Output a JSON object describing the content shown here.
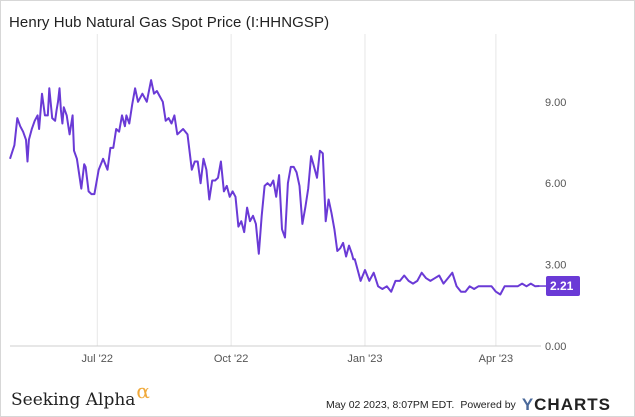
{
  "header": {
    "title": "Henry Hub Natural Gas Spot Price (I:HHNGSP)"
  },
  "footer": {
    "brand": "Seeking Alpha",
    "brand_symbol": "α",
    "timestamp": "May 02 2023, 8:07PM EDT.",
    "powered_by": "Powered by",
    "ycharts_y": "Y",
    "ycharts_rest": "CHARTS"
  },
  "colors": {
    "line": "#6a3ad6",
    "label_bg": "#6a3ad6",
    "grid": "#e6e6e6"
  },
  "chart_data": {
    "type": "line",
    "title": "Henry Hub Natural Gas Spot Price (I:HHNGSP)",
    "xlabel": "",
    "ylabel": "",
    "ylim": [
      0,
      11.5
    ],
    "xlim": [
      "2022-05-02",
      "2023-05-02"
    ],
    "y_ticks": [
      {
        "value": 0,
        "label": "0.00"
      },
      {
        "value": 3,
        "label": "3.00"
      },
      {
        "value": 6,
        "label": "6.00"
      },
      {
        "value": 9,
        "label": "9.00"
      }
    ],
    "x_ticks": [
      {
        "date": "2022-07-01",
        "label": "Jul '22"
      },
      {
        "date": "2022-10-01",
        "label": "Oct '22"
      },
      {
        "date": "2023-01-01",
        "label": "Jan '23"
      },
      {
        "date": "2023-04-01",
        "label": "Apr '23"
      }
    ],
    "grid": "vertical",
    "last_value": {
      "value": 2.21,
      "label": "2.21"
    },
    "series": [
      {
        "x": [
          "2022-05-02",
          "2022-05-05",
          "2022-05-07",
          "2022-05-09",
          "2022-05-11",
          "2022-05-13",
          "2022-05-14",
          "2022-05-15",
          "2022-05-17",
          "2022-05-19",
          "2022-05-21",
          "2022-05-22",
          "2022-05-24",
          "2022-05-26",
          "2022-05-28",
          "2022-05-29",
          "2022-05-31",
          "2022-06-02",
          "2022-06-03",
          "2022-06-04",
          "2022-06-05",
          "2022-06-06",
          "2022-06-07",
          "2022-06-08",
          "2022-06-10",
          "2022-06-12",
          "2022-06-14",
          "2022-06-15",
          "2022-06-17",
          "2022-06-20",
          "2022-06-22",
          "2022-06-23",
          "2022-06-25",
          "2022-06-27",
          "2022-06-29",
          "2022-07-02",
          "2022-07-05",
          "2022-07-08",
          "2022-07-10",
          "2022-07-12",
          "2022-07-14",
          "2022-07-16",
          "2022-07-18",
          "2022-07-20",
          "2022-07-21",
          "2022-07-23",
          "2022-07-25",
          "2022-07-27",
          "2022-07-29",
          "2022-08-01",
          "2022-08-04",
          "2022-08-07",
          "2022-08-09",
          "2022-08-11",
          "2022-08-13",
          "2022-08-15",
          "2022-08-17",
          "2022-08-19",
          "2022-08-21",
          "2022-08-23",
          "2022-08-25",
          "2022-08-27",
          "2022-08-29",
          "2022-09-01",
          "2022-09-04",
          "2022-09-06",
          "2022-09-08",
          "2022-09-10",
          "2022-09-12",
          "2022-09-14",
          "2022-09-16",
          "2022-09-18",
          "2022-09-20",
          "2022-09-22",
          "2022-09-24",
          "2022-09-26",
          "2022-09-28",
          "2022-09-30",
          "2022-10-02",
          "2022-10-04",
          "2022-10-06",
          "2022-10-08",
          "2022-10-10",
          "2022-10-12",
          "2022-10-14",
          "2022-10-16",
          "2022-10-18",
          "2022-10-20",
          "2022-10-22",
          "2022-10-24",
          "2022-10-26",
          "2022-10-28",
          "2022-10-30",
          "2022-11-01",
          "2022-11-03",
          "2022-11-05",
          "2022-11-07",
          "2022-11-09",
          "2022-11-11",
          "2022-11-13",
          "2022-11-15",
          "2022-11-17",
          "2022-11-19",
          "2022-11-21",
          "2022-11-23",
          "2022-11-25",
          "2022-11-27",
          "2022-11-29",
          "2022-12-01",
          "2022-12-03",
          "2022-12-05",
          "2022-12-07",
          "2022-12-09",
          "2022-12-11",
          "2022-12-13",
          "2022-12-15",
          "2022-12-17",
          "2022-12-19",
          "2022-12-21",
          "2022-12-23",
          "2022-12-24",
          "2022-12-25",
          "2022-12-27",
          "2022-12-29",
          "2023-01-01",
          "2023-01-04",
          "2023-01-07",
          "2023-01-10",
          "2023-01-13",
          "2023-01-16",
          "2023-01-19",
          "2023-01-22",
          "2023-01-25",
          "2023-01-28",
          "2023-01-31",
          "2023-02-03",
          "2023-02-06",
          "2023-02-09",
          "2023-02-12",
          "2023-02-15",
          "2023-02-18",
          "2023-02-21",
          "2023-02-24",
          "2023-02-27",
          "2023-03-02",
          "2023-03-05",
          "2023-03-08",
          "2023-03-11",
          "2023-03-14",
          "2023-03-17",
          "2023-03-20",
          "2023-03-23",
          "2023-03-26",
          "2023-03-29",
          "2023-04-01",
          "2023-04-04",
          "2023-04-07",
          "2023-04-10",
          "2023-04-13",
          "2023-04-16",
          "2023-04-19",
          "2023-04-22",
          "2023-04-25",
          "2023-04-28",
          "2023-05-01"
        ],
        "y": [
          6.9,
          7.4,
          8.4,
          8.1,
          7.9,
          7.6,
          6.8,
          7.6,
          8.0,
          8.3,
          8.5,
          8.0,
          9.3,
          8.5,
          8.5,
          9.5,
          8.4,
          8.3,
          8.7,
          9.0,
          9.5,
          8.7,
          8.2,
          8.8,
          8.5,
          7.8,
          8.5,
          7.2,
          6.9,
          5.8,
          6.7,
          6.6,
          5.7,
          5.6,
          5.6,
          6.5,
          6.9,
          6.5,
          7.3,
          7.3,
          8.0,
          7.9,
          8.5,
          8.1,
          8.5,
          8.2,
          8.9,
          9.5,
          9.0,
          9.3,
          9.0,
          9.8,
          9.3,
          9.4,
          9.2,
          9.0,
          8.3,
          8.4,
          8.2,
          8.5,
          7.8,
          7.9,
          8.0,
          7.8,
          6.5,
          6.8,
          6.8,
          6.0,
          6.9,
          6.5,
          5.4,
          6.1,
          6.1,
          6.2,
          6.8,
          5.7,
          5.9,
          5.5,
          5.7,
          5.5,
          4.4,
          4.6,
          4.2,
          5.1,
          4.6,
          4.8,
          4.5,
          3.4,
          4.8,
          5.9,
          6.0,
          5.9,
          6.1,
          5.5,
          6.3,
          4.3,
          4.0,
          6.0,
          6.6,
          6.6,
          6.4,
          5.9,
          4.5,
          5.1,
          5.8,
          7.0,
          6.6,
          6.2,
          7.2,
          7.1,
          4.6,
          5.4,
          4.9,
          4.3,
          3.5,
          3.6,
          3.8,
          3.3,
          3.7,
          3.4,
          3.2,
          3.2,
          2.8,
          2.4,
          2.8,
          2.4,
          2.7,
          2.2,
          2.1,
          2.2,
          2.0,
          2.4,
          2.4,
          2.6,
          2.4,
          2.3,
          2.4,
          2.7,
          2.5,
          2.4,
          2.5,
          2.6,
          2.3,
          2.5,
          2.7,
          2.2,
          2.0,
          2.0,
          2.2,
          2.1,
          2.2,
          2.2,
          2.2,
          2.2,
          2.0,
          1.9,
          2.2,
          2.2,
          2.2,
          2.2,
          2.3,
          2.2,
          2.3,
          2.2,
          2.21
        ]
      }
    ]
  }
}
